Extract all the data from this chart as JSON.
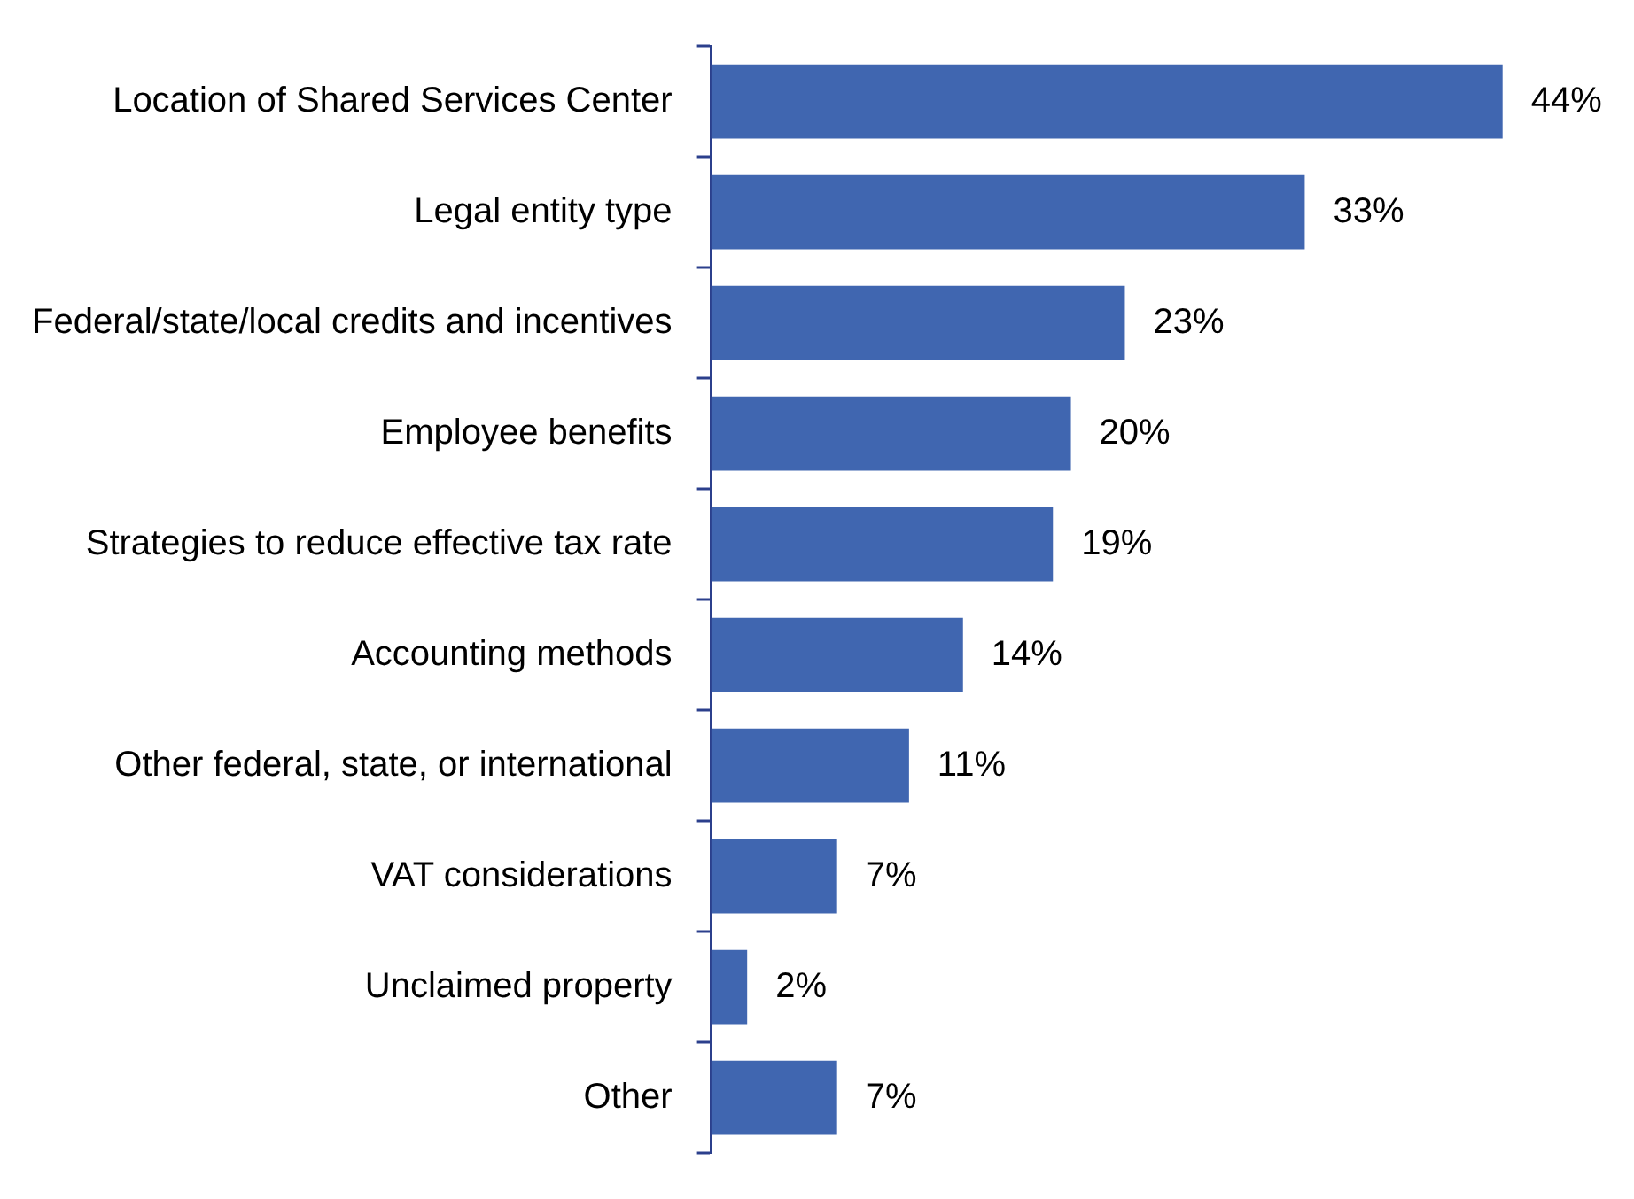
{
  "chart_data": {
    "type": "bar",
    "orientation": "horizontal",
    "categories": [
      "Location of Shared Services Center",
      "Legal entity type",
      "Federal/state/local credits and incentives",
      "Employee benefits",
      "Strategies to reduce effective tax rate",
      "Accounting methods",
      "Other federal, state, or international",
      "VAT considerations",
      "Unclaimed property",
      "Other"
    ],
    "values": [
      44,
      33,
      23,
      20,
      19,
      14,
      11,
      7,
      2,
      7
    ],
    "value_labels": [
      "44%",
      "33%",
      "23%",
      "20%",
      "19%",
      "14%",
      "11%",
      "7%",
      "2%",
      "7%"
    ],
    "color": "#4066b0",
    "tick_labels": "y"
  }
}
